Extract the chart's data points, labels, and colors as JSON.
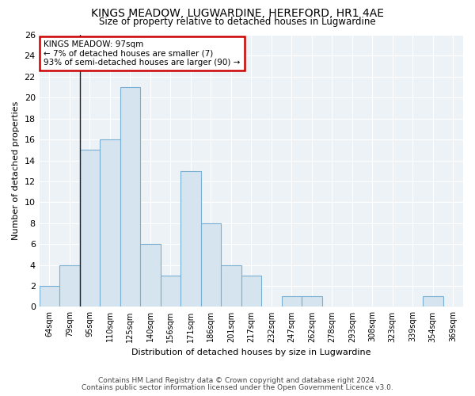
{
  "title": "KINGS MEADOW, LUGWARDINE, HEREFORD, HR1 4AE",
  "subtitle": "Size of property relative to detached houses in Lugwardine",
  "xlabel": "Distribution of detached houses by size in Lugwardine",
  "ylabel": "Number of detached properties",
  "categories": [
    "64sqm",
    "79sqm",
    "95sqm",
    "110sqm",
    "125sqm",
    "140sqm",
    "156sqm",
    "171sqm",
    "186sqm",
    "201sqm",
    "217sqm",
    "232sqm",
    "247sqm",
    "262sqm",
    "278sqm",
    "293sqm",
    "308sqm",
    "323sqm",
    "339sqm",
    "354sqm",
    "369sqm"
  ],
  "values": [
    2,
    4,
    15,
    16,
    21,
    6,
    3,
    13,
    8,
    4,
    3,
    0,
    1,
    1,
    0,
    0,
    0,
    0,
    0,
    1,
    0
  ],
  "bar_color": "#d6e4f0",
  "bar_edge_color": "#7aafd4",
  "ylim": [
    0,
    26
  ],
  "yticks": [
    0,
    2,
    4,
    6,
    8,
    10,
    12,
    14,
    16,
    18,
    20,
    22,
    24,
    26
  ],
  "vline_x_index": 2,
  "annotation_line1": "KINGS MEADOW: 97sqm",
  "annotation_line2": "← 7% of detached houses are smaller (7)",
  "annotation_line3": "93% of semi-detached houses are larger (90) →",
  "vline_color": "#222222",
  "annotation_box_edgecolor": "#cc0000",
  "annotation_box_facecolor": "#ffffff",
  "footer1": "Contains HM Land Registry data © Crown copyright and database right 2024.",
  "footer2": "Contains public sector information licensed under the Open Government Licence v3.0.",
  "bg_color": "#ffffff",
  "plot_bg_color": "#edf2f7",
  "grid_color": "#ffffff"
}
